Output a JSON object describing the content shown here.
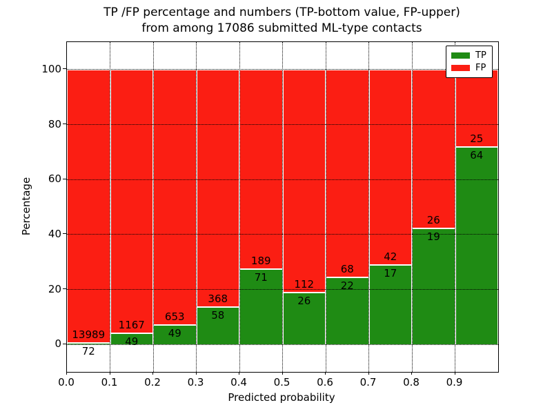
{
  "title": {
    "line1": "TP /FP percentage and numbers (TP-bottom value, FP-upper)",
    "line2": "from among 17086 submitted ML-type contacts"
  },
  "chart_data": {
    "type": "bar",
    "stacked": true,
    "normalized": "percent",
    "title_line1": "TP /FP percentage and numbers (TP-bottom value, FP-upper)",
    "title_line2": "from among 17086 submitted ML-type contacts",
    "total_contacts_in_title": 17086,
    "xlabel": "Predicted probability",
    "ylabel": "Percentage",
    "bin_starts": [
      0.0,
      0.1,
      0.2,
      0.3,
      0.4,
      0.5,
      0.6,
      0.7,
      0.8,
      0.9
    ],
    "bin_width": 0.1,
    "series": [
      {
        "name": "TP",
        "color": "#1f8b14",
        "values": [
          72,
          49,
          49,
          58,
          71,
          26,
          22,
          17,
          19,
          64
        ]
      },
      {
        "name": "FP",
        "color": "#fb1e13",
        "values": [
          13989,
          1167,
          653,
          368,
          189,
          112,
          68,
          42,
          26,
          25
        ]
      }
    ],
    "tp_percent_of_bin": [
      0.51,
      4.03,
      6.98,
      13.62,
      27.31,
      18.84,
      24.44,
      28.81,
      42.22,
      71.91
    ],
    "xticks": [
      "0.0",
      "0.1",
      "0.2",
      "0.3",
      "0.4",
      "0.5",
      "0.6",
      "0.7",
      "0.8",
      "0.9"
    ],
    "yticks": [
      0,
      20,
      40,
      60,
      80,
      100
    ],
    "xlim": [
      0,
      1
    ],
    "ylim": [
      -10,
      110
    ],
    "grid": "dotted, both axes, drawn over bars",
    "bar_edge_color": "#ffffff",
    "axis_color": "#000000",
    "legend": {
      "position": "upper right",
      "entries": [
        "TP",
        "FP"
      ]
    }
  }
}
